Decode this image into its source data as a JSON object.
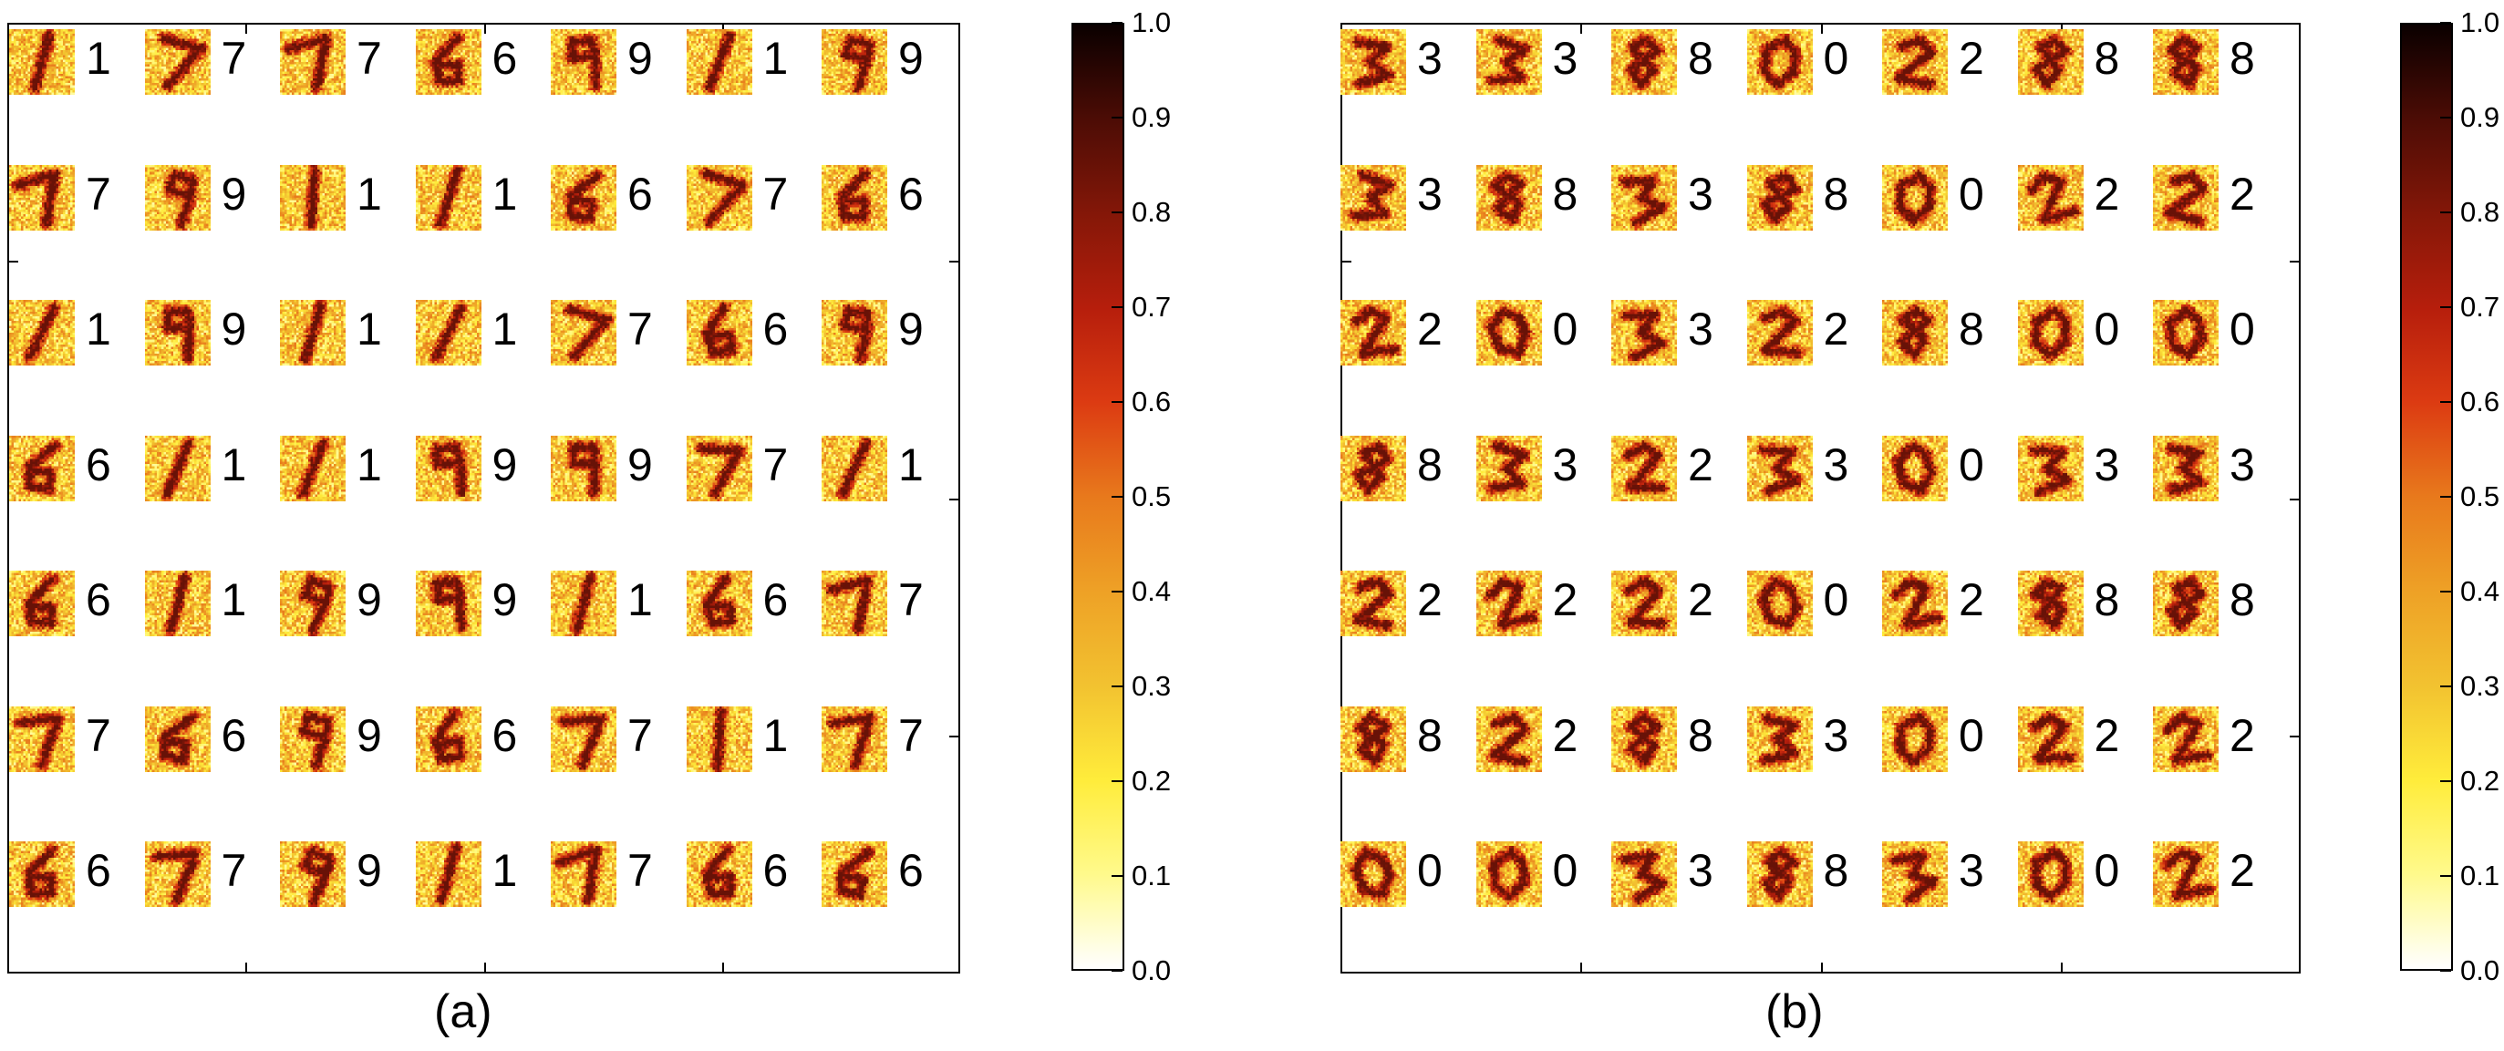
{
  "panels": [
    {
      "caption": "(a)",
      "digits": [
        [
          "1",
          "7",
          "7",
          "6",
          "9",
          "1",
          "9"
        ],
        [
          "7",
          "9",
          "1",
          "1",
          "6",
          "7",
          "6"
        ],
        [
          "1",
          "9",
          "1",
          "1",
          "7",
          "6",
          "9"
        ],
        [
          "6",
          "1",
          "1",
          "9",
          "9",
          "7",
          "1"
        ],
        [
          "6",
          "1",
          "9",
          "9",
          "1",
          "6",
          "7"
        ],
        [
          "7",
          "6",
          "9",
          "6",
          "7",
          "1",
          "7"
        ],
        [
          "6",
          "7",
          "9",
          "1",
          "7",
          "6",
          "6"
        ]
      ],
      "colorbar_ticks": [
        "0.0",
        "0.1",
        "0.2",
        "0.3",
        "0.4",
        "0.5",
        "0.6",
        "0.7",
        "0.8",
        "0.9",
        "1.0"
      ]
    },
    {
      "caption": "(b)",
      "digits": [
        [
          "3",
          "3",
          "8",
          "0",
          "2",
          "8",
          "8"
        ],
        [
          "3",
          "8",
          "3",
          "8",
          "0",
          "2",
          "2"
        ],
        [
          "2",
          "0",
          "3",
          "2",
          "8",
          "0",
          "0"
        ],
        [
          "8",
          "3",
          "2",
          "3",
          "0",
          "3",
          "3"
        ],
        [
          "2",
          "2",
          "2",
          "0",
          "2",
          "8",
          "8"
        ],
        [
          "8",
          "2",
          "8",
          "3",
          "0",
          "2",
          "2"
        ],
        [
          "0",
          "0",
          "3",
          "8",
          "3",
          "0",
          "2"
        ]
      ],
      "colorbar_ticks": [
        "0.0",
        "0.1",
        "0.2",
        "0.3",
        "0.4",
        "0.5",
        "0.6",
        "0.7",
        "0.8",
        "0.9",
        "1.0"
      ]
    }
  ],
  "colormap": {
    "name": "afmhot-reversed",
    "stops": [
      "#ffffff",
      "#fffa8c",
      "#ffec3b",
      "#f2c230",
      "#eea126",
      "#e8791c",
      "#dc3b12",
      "#b61e0c",
      "#841708",
      "#4c0c05",
      "#0a0000"
    ]
  }
}
